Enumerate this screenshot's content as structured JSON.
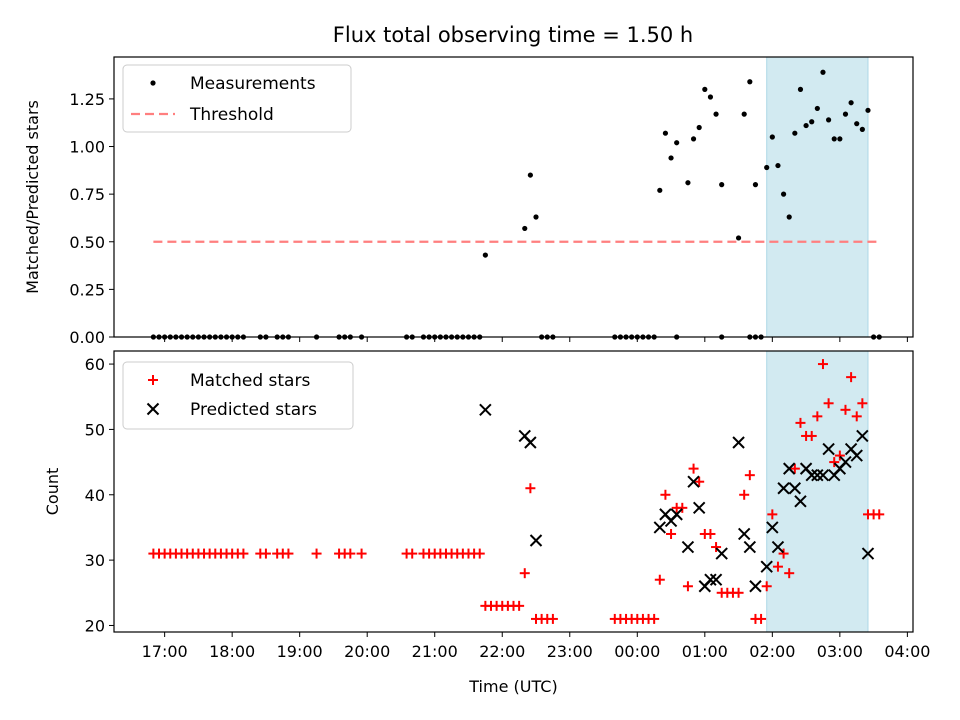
{
  "figure": {
    "title": "Flux total observing time = 1.50 h"
  },
  "colors": {
    "threshold": "#ff7f7f",
    "shade": "#add8e6",
    "matched": "#ff0000",
    "predicted": "#000000",
    "measurement": "#000000"
  },
  "chart_data": [
    {
      "type": "scatter",
      "panel": "top",
      "ylabel": "Matched/Predicted stars",
      "ylim": [
        0,
        1.47
      ],
      "yticks": [
        0.0,
        0.25,
        0.5,
        0.75,
        1.0,
        1.25
      ],
      "ytick_labels": [
        "0.00",
        "0.25",
        "0.50",
        "0.75",
        "1.00",
        "1.25"
      ],
      "legend_position": "top-left",
      "shaded_interval": [
        "01:55",
        "03:25"
      ],
      "series": [
        {
          "name": "Measurements",
          "marker": "dot",
          "points": [
            [
              "16:50",
              0
            ],
            [
              "16:55",
              0
            ],
            [
              "17:00",
              0
            ],
            [
              "17:05",
              0
            ],
            [
              "17:10",
              0
            ],
            [
              "17:15",
              0
            ],
            [
              "17:20",
              0
            ],
            [
              "17:25",
              0
            ],
            [
              "17:30",
              0
            ],
            [
              "17:35",
              0
            ],
            [
              "17:40",
              0
            ],
            [
              "17:45",
              0
            ],
            [
              "17:50",
              0
            ],
            [
              "17:55",
              0
            ],
            [
              "18:00",
              0
            ],
            [
              "18:05",
              0
            ],
            [
              "18:10",
              0
            ],
            [
              "18:25",
              0
            ],
            [
              "18:30",
              0
            ],
            [
              "18:40",
              0
            ],
            [
              "18:45",
              0
            ],
            [
              "18:50",
              0
            ],
            [
              "19:15",
              0
            ],
            [
              "19:35",
              0
            ],
            [
              "19:40",
              0
            ],
            [
              "19:45",
              0
            ],
            [
              "19:55",
              0
            ],
            [
              "20:35",
              0
            ],
            [
              "20:40",
              0
            ],
            [
              "20:50",
              0
            ],
            [
              "20:55",
              0
            ],
            [
              "21:00",
              0
            ],
            [
              "21:05",
              0
            ],
            [
              "21:10",
              0
            ],
            [
              "21:15",
              0
            ],
            [
              "21:20",
              0
            ],
            [
              "21:25",
              0
            ],
            [
              "21:30",
              0
            ],
            [
              "21:35",
              0
            ],
            [
              "21:40",
              0
            ],
            [
              "21:45",
              0.43
            ],
            [
              "22:20",
              0.57
            ],
            [
              "22:25",
              0.85
            ],
            [
              "22:30",
              0.63
            ],
            [
              "22:35",
              0
            ],
            [
              "22:40",
              0
            ],
            [
              "22:45",
              0
            ],
            [
              "23:40",
              0
            ],
            [
              "23:45",
              0
            ],
            [
              "23:50",
              0
            ],
            [
              "23:55",
              0
            ],
            [
              "00:00",
              0
            ],
            [
              "00:05",
              0
            ],
            [
              "00:10",
              0
            ],
            [
              "00:15",
              0
            ],
            [
              "00:20",
              0.77
            ],
            [
              "00:25",
              1.07
            ],
            [
              "00:30",
              0.94
            ],
            [
              "00:35",
              1.02
            ],
            [
              "00:45",
              0.81
            ],
            [
              "00:50",
              1.04
            ],
            [
              "00:55",
              1.1
            ],
            [
              "01:00",
              1.3
            ],
            [
              "01:05",
              1.26
            ],
            [
              "01:10",
              1.17
            ],
            [
              "01:15",
              0.8
            ],
            [
              "01:30",
              0.52
            ],
            [
              "01:35",
              1.17
            ],
            [
              "01:40",
              1.34
            ],
            [
              "01:45",
              0.8
            ],
            [
              "01:50",
              0
            ],
            [
              "01:55",
              0.89
            ],
            [
              "02:00",
              1.05
            ],
            [
              "02:05",
              0.9
            ],
            [
              "02:10",
              0.75
            ],
            [
              "02:15",
              0.63
            ],
            [
              "02:20",
              1.07
            ],
            [
              "02:25",
              1.3
            ],
            [
              "02:30",
              1.11
            ],
            [
              "02:35",
              1.13
            ],
            [
              "02:40",
              1.2
            ],
            [
              "02:45",
              1.39
            ],
            [
              "02:50",
              1.14
            ],
            [
              "02:55",
              1.04
            ],
            [
              "03:00",
              1.04
            ],
            [
              "03:05",
              1.17
            ],
            [
              "03:10",
              1.23
            ],
            [
              "03:15",
              1.12
            ],
            [
              "03:20",
              1.09
            ],
            [
              "03:25",
              1.19
            ],
            [
              "03:30",
              0
            ],
            [
              "03:35",
              0
            ],
            [
              "00:35",
              0
            ],
            [
              "01:15",
              0
            ],
            [
              "01:40",
              0
            ],
            [
              "01:45",
              0
            ]
          ]
        },
        {
          "name": "Threshold",
          "marker": "dashed-line",
          "x": [
            "16:50",
            "03:35"
          ],
          "values": [
            0.5,
            0.5
          ]
        }
      ]
    },
    {
      "type": "scatter",
      "panel": "bottom",
      "xlabel": "Time (UTC)",
      "ylabel": "Count",
      "xlim": [
        "16:15",
        "04:05"
      ],
      "xticks": [
        "17:00",
        "18:00",
        "19:00",
        "20:00",
        "21:00",
        "22:00",
        "23:00",
        "00:00",
        "01:00",
        "02:00",
        "03:00",
        "04:00"
      ],
      "ylim": [
        19,
        62
      ],
      "yticks": [
        20,
        30,
        40,
        50,
        60
      ],
      "legend_position": "top-left",
      "shaded_interval": [
        "01:55",
        "03:25"
      ],
      "series": [
        {
          "name": "Matched stars",
          "marker": "plus",
          "points": [
            [
              "16:50",
              31
            ],
            [
              "16:55",
              31
            ],
            [
              "17:00",
              31
            ],
            [
              "17:05",
              31
            ],
            [
              "17:10",
              31
            ],
            [
              "17:15",
              31
            ],
            [
              "17:20",
              31
            ],
            [
              "17:25",
              31
            ],
            [
              "17:30",
              31
            ],
            [
              "17:35",
              31
            ],
            [
              "17:40",
              31
            ],
            [
              "17:45",
              31
            ],
            [
              "17:50",
              31
            ],
            [
              "17:55",
              31
            ],
            [
              "18:00",
              31
            ],
            [
              "18:05",
              31
            ],
            [
              "18:10",
              31
            ],
            [
              "18:25",
              31
            ],
            [
              "18:30",
              31
            ],
            [
              "18:40",
              31
            ],
            [
              "18:45",
              31
            ],
            [
              "18:50",
              31
            ],
            [
              "19:15",
              31
            ],
            [
              "19:35",
              31
            ],
            [
              "19:40",
              31
            ],
            [
              "19:45",
              31
            ],
            [
              "19:55",
              31
            ],
            [
              "20:35",
              31
            ],
            [
              "20:40",
              31
            ],
            [
              "20:50",
              31
            ],
            [
              "20:55",
              31
            ],
            [
              "21:00",
              31
            ],
            [
              "21:05",
              31
            ],
            [
              "21:10",
              31
            ],
            [
              "21:15",
              31
            ],
            [
              "21:20",
              31
            ],
            [
              "21:25",
              31
            ],
            [
              "21:30",
              31
            ],
            [
              "21:35",
              31
            ],
            [
              "21:40",
              31
            ],
            [
              "21:45",
              23
            ],
            [
              "21:50",
              23
            ],
            [
              "21:55",
              23
            ],
            [
              "22:00",
              23
            ],
            [
              "22:05",
              23
            ],
            [
              "22:10",
              23
            ],
            [
              "22:15",
              23
            ],
            [
              "22:20",
              28
            ],
            [
              "22:25",
              41
            ],
            [
              "22:30",
              21
            ],
            [
              "22:35",
              21
            ],
            [
              "22:40",
              21
            ],
            [
              "22:45",
              21
            ],
            [
              "23:40",
              21
            ],
            [
              "23:45",
              21
            ],
            [
              "23:50",
              21
            ],
            [
              "23:55",
              21
            ],
            [
              "00:00",
              21
            ],
            [
              "00:05",
              21
            ],
            [
              "00:10",
              21
            ],
            [
              "00:15",
              21
            ],
            [
              "00:20",
              27
            ],
            [
              "00:25",
              40
            ],
            [
              "00:30",
              34
            ],
            [
              "00:35",
              38
            ],
            [
              "00:40",
              38
            ],
            [
              "00:45",
              26
            ],
            [
              "00:50",
              44
            ],
            [
              "00:55",
              42
            ],
            [
              "01:00",
              34
            ],
            [
              "01:05",
              34
            ],
            [
              "01:10",
              32
            ],
            [
              "01:15",
              25
            ],
            [
              "01:20",
              25
            ],
            [
              "01:25",
              25
            ],
            [
              "01:30",
              25
            ],
            [
              "01:35",
              40
            ],
            [
              "01:40",
              43
            ],
            [
              "01:45",
              21
            ],
            [
              "01:50",
              21
            ],
            [
              "01:55",
              26
            ],
            [
              "02:00",
              37
            ],
            [
              "02:05",
              29
            ],
            [
              "02:10",
              31
            ],
            [
              "02:15",
              28
            ],
            [
              "02:20",
              44
            ],
            [
              "02:25",
              51
            ],
            [
              "02:30",
              49
            ],
            [
              "02:35",
              49
            ],
            [
              "02:40",
              52
            ],
            [
              "02:45",
              60
            ],
            [
              "02:50",
              54
            ],
            [
              "02:55",
              45
            ],
            [
              "03:00",
              46
            ],
            [
              "03:05",
              53
            ],
            [
              "03:10",
              58
            ],
            [
              "03:15",
              52
            ],
            [
              "03:20",
              54
            ],
            [
              "03:25",
              37
            ],
            [
              "03:30",
              37
            ],
            [
              "03:35",
              37
            ]
          ]
        },
        {
          "name": "Predicted stars",
          "marker": "x",
          "points": [
            [
              "21:45",
              53
            ],
            [
              "22:20",
              49
            ],
            [
              "22:25",
              48
            ],
            [
              "22:30",
              33
            ],
            [
              "00:20",
              35
            ],
            [
              "00:25",
              37
            ],
            [
              "00:30",
              36
            ],
            [
              "00:35",
              37
            ],
            [
              "00:45",
              32
            ],
            [
              "00:50",
              42
            ],
            [
              "00:55",
              38
            ],
            [
              "01:00",
              26
            ],
            [
              "01:05",
              27
            ],
            [
              "01:10",
              27
            ],
            [
              "01:15",
              31
            ],
            [
              "01:30",
              48
            ],
            [
              "01:35",
              34
            ],
            [
              "01:40",
              32
            ],
            [
              "01:45",
              26
            ],
            [
              "01:55",
              29
            ],
            [
              "02:00",
              35
            ],
            [
              "02:05",
              32
            ],
            [
              "02:10",
              41
            ],
            [
              "02:15",
              44
            ],
            [
              "02:20",
              41
            ],
            [
              "02:25",
              39
            ],
            [
              "02:30",
              44
            ],
            [
              "02:35",
              43
            ],
            [
              "02:40",
              43
            ],
            [
              "02:45",
              43
            ],
            [
              "02:50",
              47
            ],
            [
              "02:55",
              43
            ],
            [
              "03:00",
              44
            ],
            [
              "03:05",
              45
            ],
            [
              "03:10",
              47
            ],
            [
              "03:15",
              46
            ],
            [
              "03:20",
              49
            ],
            [
              "03:25",
              31
            ]
          ]
        }
      ]
    }
  ]
}
